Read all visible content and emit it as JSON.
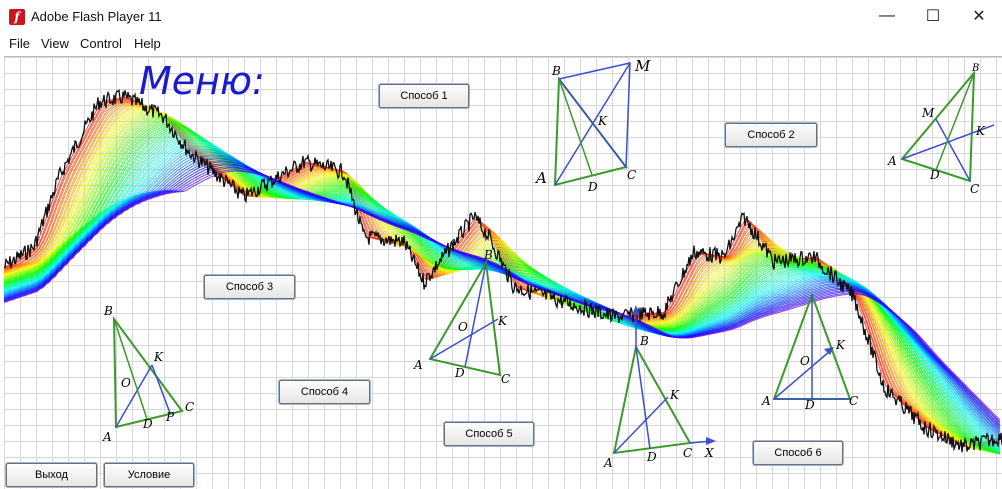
{
  "window": {
    "title": "Adobe Flash Player 11",
    "icon": "flash-icon",
    "controls": {
      "minimize": "—",
      "maximize": "☐",
      "close": "✕"
    }
  },
  "menubar": {
    "items": [
      "File",
      "View",
      "Control",
      "Help"
    ]
  },
  "stage": {
    "menu_title": "Меню:"
  },
  "buttons": {
    "s1": "Способ 1",
    "s2": "Способ 2",
    "s3": "Способ 3",
    "s4": "Способ 4",
    "s5": "Способ 5",
    "s6": "Способ 6",
    "exit": "Выход",
    "condition": "Условие"
  },
  "diagrams": {
    "d1": {
      "B": "B",
      "M": "M",
      "K": "K",
      "A": "A",
      "D": "D",
      "C": "C"
    },
    "d2": {
      "B": "B",
      "M": "M",
      "K": "K",
      "A": "A",
      "D": "D",
      "C": "C"
    },
    "d3": {
      "B": "B",
      "K": "K",
      "O": "O",
      "A": "A",
      "D": "D",
      "P": "P",
      "C": "C"
    },
    "d4": {
      "B": "B",
      "K": "K",
      "O": "O",
      "A": "A",
      "D": "D",
      "C": "C"
    },
    "d5": {
      "B": "B",
      "K": "K",
      "A": "A",
      "D": "D",
      "C": "C",
      "X": "X"
    },
    "d6": {
      "K": "K",
      "O": "O",
      "A": "A",
      "D": "D",
      "C": "C"
    }
  },
  "colors": {
    "title": "#1a1ad0",
    "triangle": "#3a9a2a",
    "segment": "#3a4fd0",
    "chart": "#111111"
  }
}
